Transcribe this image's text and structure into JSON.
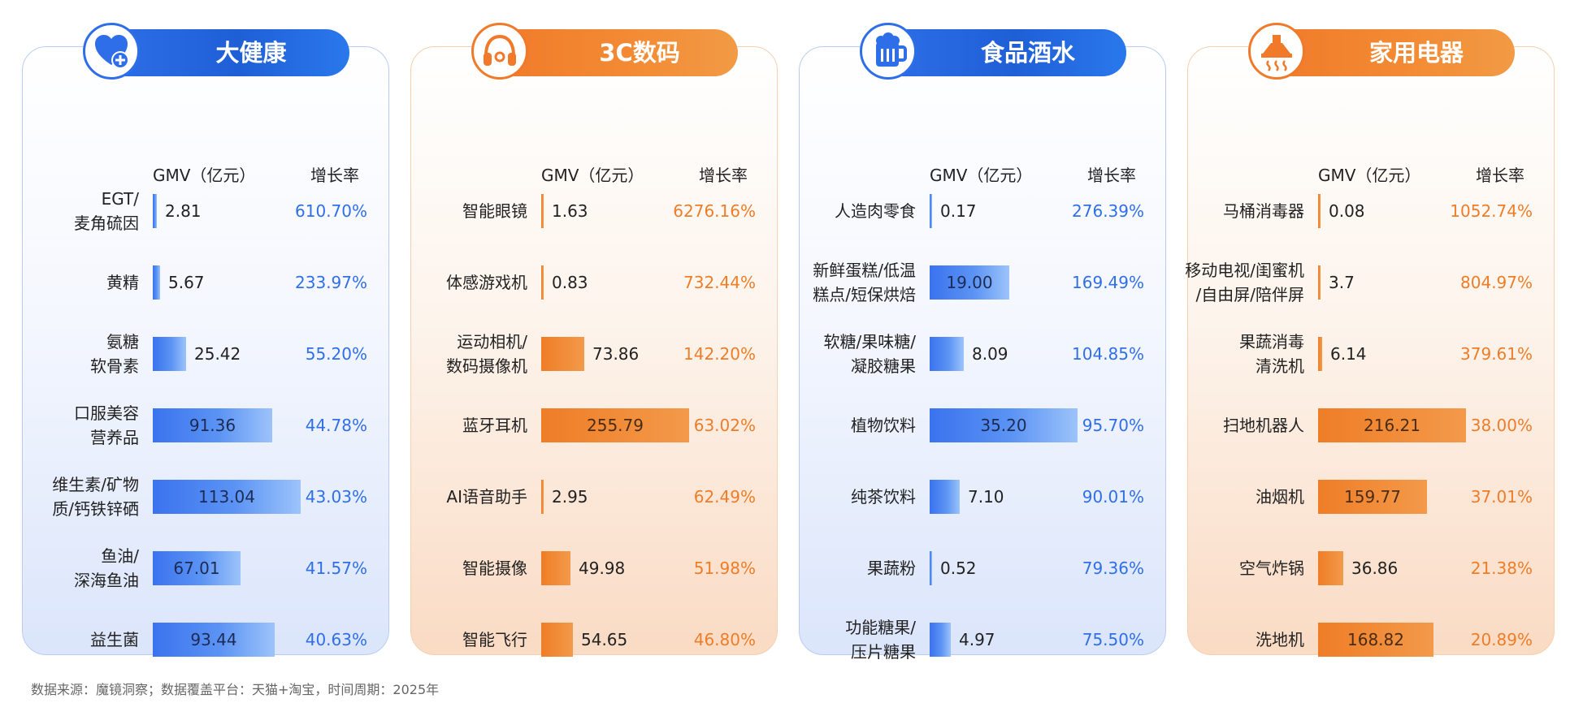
{
  "footer": {
    "source": "数据来源：魔镜洞察；数据覆盖平台：天猫+淘宝，时间周期：2025年"
  },
  "columns": {
    "gmv": "GMV（亿元）",
    "growth": "增长率"
  },
  "chart_data": [
    {
      "type": "bar",
      "title": "大健康",
      "theme_color": "#2e6ee8",
      "icon": "health-heart-plus-icon",
      "categories": [
        "EGT/\n麦角硫因",
        "黄精",
        "氨糖\n软骨素",
        "口服美容\n营养品",
        "维生素/矿物\n质/钙铁锌硒",
        "鱼油/\n深海鱼油",
        "益生菌"
      ],
      "gmv": [
        2.81,
        5.67,
        25.42,
        91.36,
        113.04,
        67.01,
        93.44
      ],
      "gmv_labels": [
        "2.81",
        "5.67",
        "25.42",
        "91.36",
        "113.04",
        "67.01",
        "93.44"
      ],
      "growth": [
        "610.70%",
        "233.97%",
        "55.20%",
        "44.78%",
        "43.03%",
        "41.57%",
        "40.63%"
      ],
      "xlim": [
        0,
        113.04
      ]
    },
    {
      "type": "bar",
      "title": "3C数码",
      "theme_color": "#f07a2a",
      "icon": "headphones-icon",
      "categories": [
        "智能眼镜",
        "体感游戏机",
        "运动相机/\n数码摄像机",
        "蓝牙耳机",
        "AI语音助手",
        "智能摄像",
        "智能飞行"
      ],
      "gmv": [
        1.63,
        0.83,
        73.86,
        255.79,
        2.95,
        49.98,
        54.65
      ],
      "gmv_labels": [
        "1.63",
        "0.83",
        "73.86",
        "255.79",
        "2.95",
        "49.98",
        "54.65"
      ],
      "growth": [
        "6276.16%",
        "732.44%",
        "142.20%",
        "63.02%",
        "62.49%",
        "51.98%",
        "46.80%"
      ],
      "xlim": [
        0,
        255.79
      ]
    },
    {
      "type": "bar",
      "title": "食品酒水",
      "theme_color": "#2e6ee8",
      "icon": "beer-mug-icon",
      "categories": [
        "人造肉零食",
        "新鲜蛋糕/低温\n糕点/短保烘焙",
        "软糖/果味糖/\n凝胶糖果",
        "植物饮料",
        "纯茶饮料",
        "果蔬粉",
        "功能糖果/\n压片糖果"
      ],
      "gmv": [
        0.17,
        19.0,
        8.09,
        35.2,
        7.1,
        0.52,
        4.97
      ],
      "gmv_labels": [
        "0.17",
        "19.00",
        "8.09",
        "35.20",
        "7.10",
        "0.52",
        "4.97"
      ],
      "growth": [
        "276.39%",
        "169.49%",
        "104.85%",
        "95.70%",
        "90.01%",
        "79.36%",
        "75.50%"
      ],
      "xlim": [
        0,
        35.2
      ]
    },
    {
      "type": "bar",
      "title": "家用电器",
      "theme_color": "#f07a2a",
      "icon": "range-hood-icon",
      "categories": [
        "马桶消毒器",
        "移动电视/闺蜜机\n/自由屏/陪伴屏",
        "果蔬消毒\n清洗机",
        "扫地机器人",
        "油烟机",
        "空气炸锅",
        "洗地机"
      ],
      "gmv": [
        0.08,
        3.7,
        6.14,
        216.21,
        159.77,
        36.86,
        168.82
      ],
      "gmv_labels": [
        "0.08",
        "3.7",
        "6.14",
        "216.21",
        "159.77",
        "36.86",
        "168.82"
      ],
      "growth": [
        "1052.74%",
        "804.97%",
        "379.61%",
        "38.00%",
        "37.01%",
        "21.38%",
        "20.89%"
      ],
      "xlim": [
        0,
        216.21
      ]
    }
  ]
}
